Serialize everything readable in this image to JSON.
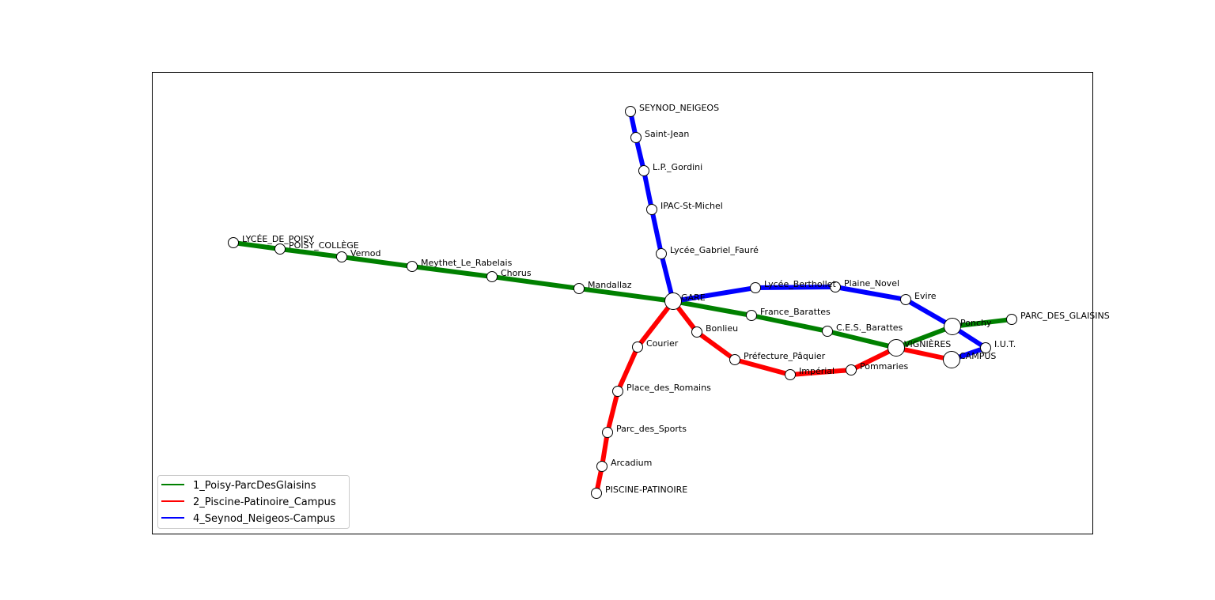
{
  "lines": [
    {
      "id": "1",
      "name": "1_Poisy-ParcDesGlaisins",
      "color": "#008000",
      "stations": [
        "LYCÉE_DE_POISY",
        "POISY_COLLÈGE",
        "Vernod",
        "Meythet_Le_Rabelais",
        "Chorus",
        "Mandallaz",
        "GARE",
        "France_Barattes",
        "C.E.S._Barattes",
        "VIGNIÈRES",
        "Ponchy",
        "PARC_DES_GLAISINS"
      ]
    },
    {
      "id": "2",
      "name": "2_Piscine-Patinoire_Campus",
      "color": "#ff0000",
      "stations": [
        "PISCINE-PATINOIRE",
        "Arcadium",
        "Parc_des_Sports",
        "Place_des_Romains",
        "Courier",
        "GARE",
        "Bonlieu",
        "Préfecture_Pâquier",
        "Impérial",
        "Pommaries",
        "VIGNIÈRES",
        "CAMPUS"
      ]
    },
    {
      "id": "4",
      "name": "4_Seynod_Neigeos-Campus",
      "color": "#0000ff",
      "stations": [
        "SEYNOD_NEIGEOS",
        "Saint-Jean",
        "L.P._Gordini",
        "IPAC-St-Michel",
        "Lycée_Gabriel_Fauré",
        "GARE",
        "Lycée_Berthollet",
        "Plaine_Novel",
        "Evire",
        "Ponchy",
        "I.U.T.",
        "CAMPUS"
      ]
    }
  ],
  "stations": [
    {
      "name": "LYCÉE_DE_POISY",
      "hub": false
    },
    {
      "name": "POISY_COLLÈGE",
      "hub": false
    },
    {
      "name": "Vernod",
      "hub": false
    },
    {
      "name": "Meythet_Le_Rabelais",
      "hub": false
    },
    {
      "name": "Chorus",
      "hub": false
    },
    {
      "name": "Mandallaz",
      "hub": false
    },
    {
      "name": "GARE",
      "hub": true
    },
    {
      "name": "France_Barattes",
      "hub": false
    },
    {
      "name": "C.E.S._Barattes",
      "hub": false
    },
    {
      "name": "VIGNIÈRES",
      "hub": true
    },
    {
      "name": "Ponchy",
      "hub": true
    },
    {
      "name": "PARC_DES_GLAISINS",
      "hub": false
    },
    {
      "name": "PISCINE-PATINOIRE",
      "hub": false
    },
    {
      "name": "Arcadium",
      "hub": false
    },
    {
      "name": "Parc_des_Sports",
      "hub": false
    },
    {
      "name": "Place_des_Romains",
      "hub": false
    },
    {
      "name": "Courier",
      "hub": false
    },
    {
      "name": "Bonlieu",
      "hub": false
    },
    {
      "name": "Préfecture_Pâquier",
      "hub": false
    },
    {
      "name": "Impérial",
      "hub": false
    },
    {
      "name": "Pommaries",
      "hub": false
    },
    {
      "name": "CAMPUS",
      "hub": true
    },
    {
      "name": "SEYNOD_NEIGEOS",
      "hub": false
    },
    {
      "name": "Saint-Jean",
      "hub": false
    },
    {
      "name": "L.P._Gordini",
      "hub": false
    },
    {
      "name": "IPAC-St-Michel",
      "hub": false
    },
    {
      "name": "Lycée_Gabriel_Fauré",
      "hub": false
    },
    {
      "name": "Lycée_Berthollet",
      "hub": false
    },
    {
      "name": "Plaine_Novel",
      "hub": false
    },
    {
      "name": "Evire",
      "hub": false
    },
    {
      "name": "I.U.T.",
      "hub": false
    }
  ],
  "legend": {
    "placement": "lower-left",
    "entries": [
      {
        "label": "1_Poisy-ParcDesGlaisins",
        "color": "#008000"
      },
      {
        "label": "2_Piscine-Patinoire_Campus",
        "color": "#ff0000"
      },
      {
        "label": "4_Seynod_Neigeos-Campus",
        "color": "#0000ff"
      }
    ]
  }
}
